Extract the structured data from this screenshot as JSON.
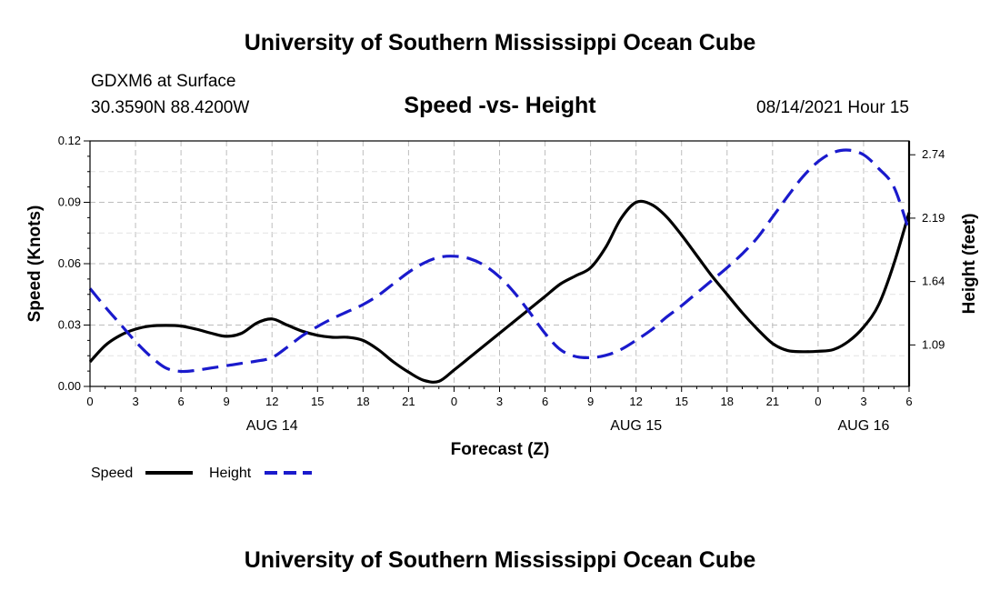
{
  "page_title_top": "University of Southern Mississippi Ocean Cube",
  "page_title_bottom": "University of Southern Mississippi Ocean Cube",
  "station": "GDXM6 at Surface",
  "coords": "30.3590N  88.4200W",
  "timestamp": "08/14/2021 Hour 15",
  "colors": {
    "speed": "#000000",
    "height": "#1a1acc",
    "grid": "#bdbdbd"
  },
  "chart_data": {
    "type": "line",
    "title": "Speed -vs- Height",
    "xlabel": "Forecast (Z)",
    "ylabel": "Speed (Knots)",
    "y2label": "Height (feet)",
    "x_hours_range": [
      0,
      54
    ],
    "ylim": [
      0,
      0.12
    ],
    "y2lim": [
      0.73,
      2.86
    ],
    "yticks": [
      "0.00",
      "0.03",
      "0.06",
      "0.09",
      "0.12"
    ],
    "y2ticks": [
      {
        "label": "1.09",
        "value": 1.09
      },
      {
        "label": "1.64",
        "value": 1.64
      },
      {
        "label": "2.19",
        "value": 2.19
      },
      {
        "label": "2.74",
        "value": 2.74
      }
    ],
    "xticks": [
      {
        "h": 0,
        "label": "0"
      },
      {
        "h": 3,
        "label": "3"
      },
      {
        "h": 6,
        "label": "6"
      },
      {
        "h": 9,
        "label": "9"
      },
      {
        "h": 12,
        "label": "12"
      },
      {
        "h": 15,
        "label": "15"
      },
      {
        "h": 18,
        "label": "18"
      },
      {
        "h": 21,
        "label": "21"
      },
      {
        "h": 24,
        "label": "0"
      },
      {
        "h": 27,
        "label": "3"
      },
      {
        "h": 30,
        "label": "6"
      },
      {
        "h": 33,
        "label": "9"
      },
      {
        "h": 36,
        "label": "12"
      },
      {
        "h": 39,
        "label": "15"
      },
      {
        "h": 42,
        "label": "18"
      },
      {
        "h": 45,
        "label": "21"
      },
      {
        "h": 48,
        "label": "0"
      },
      {
        "h": 51,
        "label": "3"
      },
      {
        "h": 54,
        "label": "6"
      }
    ],
    "date_labels": [
      {
        "h": 12,
        "label": "AUG 14"
      },
      {
        "h": 36,
        "label": "AUG 15"
      },
      {
        "h": 51,
        "label": "AUG 16"
      }
    ],
    "legend": [
      {
        "name": "Speed",
        "style": "solid"
      },
      {
        "name": "Height",
        "style": "dashed"
      }
    ],
    "series": [
      {
        "name": "Speed",
        "axis": "left",
        "x": [
          0,
          1,
          2,
          3,
          4,
          5,
          6,
          7,
          8,
          9,
          10,
          11,
          12,
          13,
          14,
          15,
          16,
          17,
          18,
          19,
          20,
          21,
          22,
          23,
          24,
          25,
          26,
          27,
          28,
          29,
          30,
          31,
          32,
          33,
          34,
          35,
          36,
          37,
          38,
          39,
          40,
          41,
          42,
          43,
          44,
          45,
          46,
          47,
          48,
          49,
          50,
          51,
          52,
          53,
          54
        ],
        "values": [
          0.012,
          0.02,
          0.025,
          0.028,
          0.0295,
          0.0298,
          0.0295,
          0.028,
          0.026,
          0.0245,
          0.026,
          0.031,
          0.033,
          0.03,
          0.027,
          0.025,
          0.024,
          0.024,
          0.0225,
          0.018,
          0.012,
          0.007,
          0.003,
          0.0025,
          0.008,
          0.014,
          0.02,
          0.026,
          0.032,
          0.038,
          0.044,
          0.05,
          0.054,
          0.058,
          0.068,
          0.082,
          0.09,
          0.089,
          0.083,
          0.074,
          0.064,
          0.054,
          0.045,
          0.036,
          0.028,
          0.021,
          0.0175,
          0.017,
          0.0172,
          0.018,
          0.022,
          0.029,
          0.04,
          0.06,
          0.085
        ]
      },
      {
        "name": "Height",
        "axis": "right",
        "x": [
          0,
          1,
          2,
          3,
          4,
          5,
          6,
          7,
          8,
          9,
          10,
          11,
          12,
          13,
          14,
          15,
          16,
          17,
          18,
          19,
          20,
          21,
          22,
          23,
          24,
          25,
          26,
          27,
          28,
          29,
          30,
          31,
          32,
          33,
          34,
          35,
          36,
          37,
          38,
          39,
          40,
          41,
          42,
          43,
          44,
          45,
          46,
          47,
          48,
          49,
          50,
          51,
          52,
          53,
          54
        ],
        "values": [
          1.58,
          1.42,
          1.27,
          1.12,
          0.99,
          0.89,
          0.86,
          0.87,
          0.89,
          0.91,
          0.93,
          0.95,
          0.98,
          1.07,
          1.17,
          1.25,
          1.32,
          1.38,
          1.44,
          1.52,
          1.62,
          1.72,
          1.8,
          1.85,
          1.86,
          1.84,
          1.78,
          1.68,
          1.54,
          1.37,
          1.19,
          1.05,
          0.99,
          0.98,
          1.0,
          1.05,
          1.13,
          1.22,
          1.33,
          1.43,
          1.54,
          1.65,
          1.76,
          1.88,
          2.02,
          2.2,
          2.38,
          2.55,
          2.68,
          2.76,
          2.78,
          2.74,
          2.62,
          2.46,
          2.08
        ]
      }
    ]
  }
}
